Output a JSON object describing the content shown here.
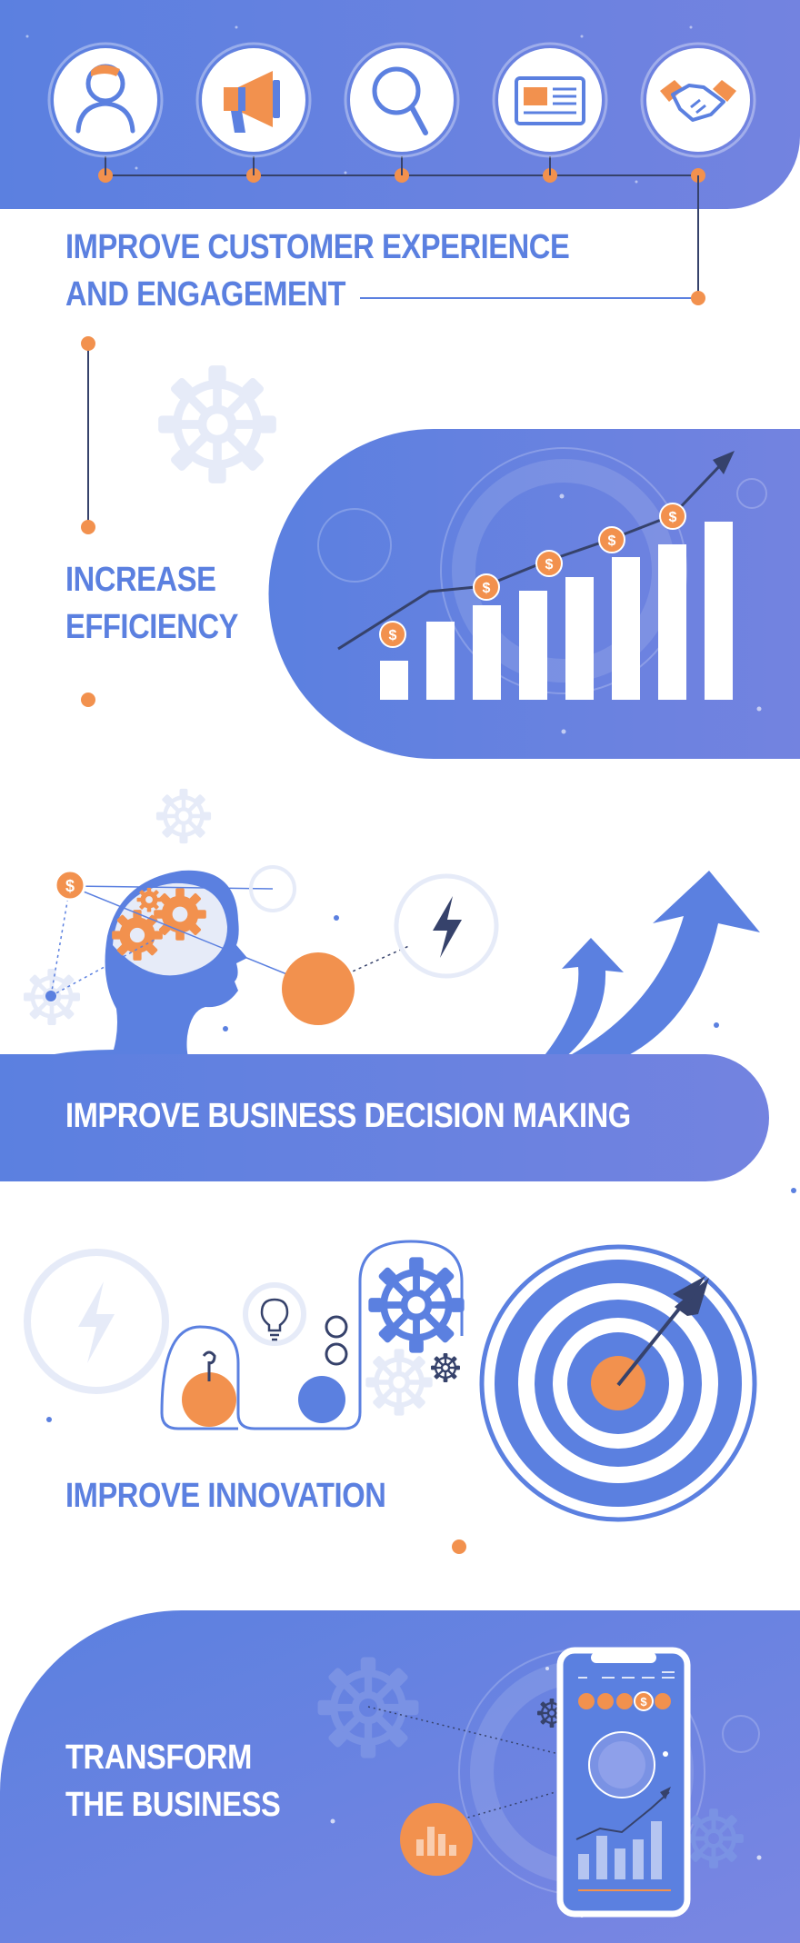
{
  "colors": {
    "primary_blue": "#5b80e0",
    "gradient_end": "#7383e0",
    "accent_orange": "#f2914e",
    "light_blue": "#e6ebf8",
    "dark_navy": "#36426b",
    "white": "#ffffff"
  },
  "sections": [
    {
      "id": "customer-experience",
      "heading_lines": [
        "IMPROVE CUSTOMER EXPERIENCE",
        "AND ENGAGEMENT"
      ],
      "icons": [
        "person-icon",
        "megaphone-icon",
        "magnifier-icon",
        "newspaper-icon",
        "handshake-icon"
      ]
    },
    {
      "id": "efficiency",
      "heading_lines": [
        "INCREASE",
        "EFFICIENCY"
      ],
      "coin_symbol": "$",
      "bar_levels": [
        0.22,
        0.44,
        0.53,
        0.61,
        0.69,
        0.8,
        0.87,
        1.0
      ]
    },
    {
      "id": "decision-making",
      "heading_lines": [
        "IMPROVE BUSINESS DECISION MAKING"
      ],
      "coin_symbol": "$",
      "icons": [
        "head-silhouette-icon",
        "gears-icon",
        "lightning-icon",
        "arrows-up-icon"
      ]
    },
    {
      "id": "innovation",
      "heading_lines": [
        "IMPROVE INNOVATION"
      ],
      "icons": [
        "lightning-icon",
        "lightbulb-icon",
        "gear-icon",
        "target-icon",
        "dart-icon"
      ]
    },
    {
      "id": "transform",
      "heading_lines": [
        "TRANSFORM",
        "THE BUSINESS"
      ],
      "coin_symbol": "$",
      "icons": [
        "smartphone-icon",
        "gear-icon",
        "bar-chart-icon"
      ]
    }
  ]
}
